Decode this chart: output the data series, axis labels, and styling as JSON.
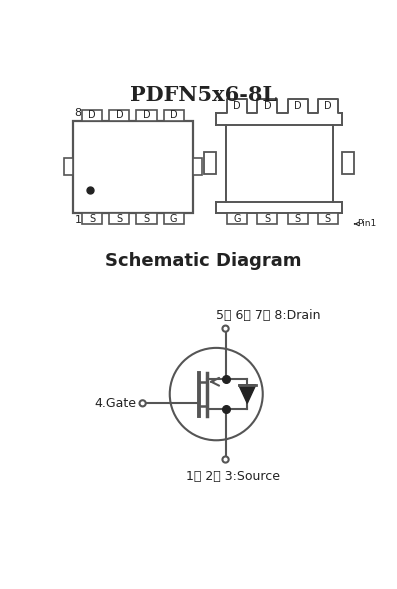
{
  "title": "PDFN5x6-8L",
  "schematic_title": "Schematic Diagram",
  "bg_color": "#ffffff",
  "line_color": "#555555",
  "text_color": "#222222",
  "drain_label": "5、 6、 7、 8:Drain",
  "source_label": "1、 2、 3:Source",
  "gate_label": "4.Gate",
  "pin1_label": "Pin1",
  "top_pads_labels": [
    "D",
    "D",
    "D",
    "D"
  ],
  "bot_pads_left": [
    "S",
    "S",
    "S",
    "G"
  ],
  "bot_pads_right": [
    "G",
    "S",
    "S",
    "S"
  ]
}
